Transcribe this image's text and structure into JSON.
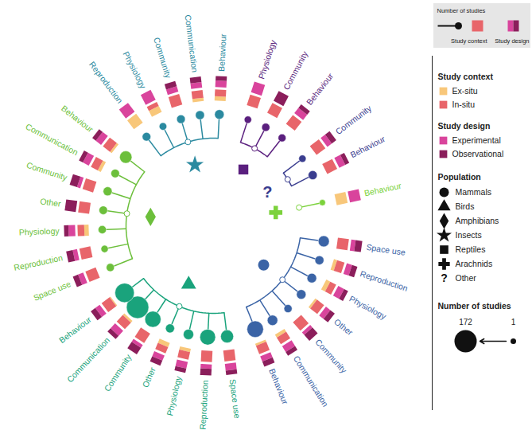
{
  "chart_data": {
    "type": "radial_dendrogram",
    "key": {
      "studies": "Number of studies",
      "context": "Study context",
      "design": "Study design"
    },
    "context_legend": {
      "title": "Study context",
      "items": [
        {
          "name": "Ex-situ",
          "color": "#f8c77a"
        },
        {
          "name": "In-situ",
          "color": "#e8656a"
        }
      ]
    },
    "design_legend": {
      "title": "Study design",
      "items": [
        {
          "name": "Experimental",
          "color": "#d9449c"
        },
        {
          "name": "Observational",
          "color": "#8b1e5b"
        }
      ]
    },
    "population_legend": {
      "title": "Population",
      "items": [
        "Mammals",
        "Birds",
        "Amphibians",
        "Insects",
        "Reptiles",
        "Arachnids",
        "Other"
      ],
      "other_icon": "?"
    },
    "size_legend": {
      "title": "Number of studies",
      "values": [
        172,
        1
      ]
    },
    "groups": [
      {
        "name": "Mammals",
        "color": "#3b64a6",
        "leaves": [
          {
            "label": "Space use",
            "studies": 25,
            "ex_situ": 0,
            "in_situ": 100,
            "experimental": 40,
            "observational": 60
          },
          {
            "label": "Reproduction",
            "studies": 12,
            "ex_situ": 30,
            "in_situ": 70,
            "experimental": 50,
            "observational": 50
          },
          {
            "label": "Physiology",
            "studies": 15,
            "ex_situ": 40,
            "in_situ": 60,
            "experimental": 60,
            "observational": 40
          },
          {
            "label": "Other",
            "studies": 15,
            "ex_situ": 20,
            "in_situ": 80,
            "experimental": 50,
            "observational": 50
          },
          {
            "label": "Community",
            "studies": 8,
            "ex_situ": 0,
            "in_situ": 100,
            "experimental": 30,
            "observational": 70
          },
          {
            "label": "Communication",
            "studies": 20,
            "ex_situ": 30,
            "in_situ": 70,
            "experimental": 60,
            "observational": 40
          },
          {
            "label": "Behaviour",
            "studies": 80,
            "ex_situ": 20,
            "in_situ": 80,
            "experimental": 50,
            "observational": 50
          }
        ]
      },
      {
        "name": "Birds",
        "color": "#1aa37c",
        "leaves": [
          {
            "label": "Space use",
            "studies": 40,
            "ex_situ": 0,
            "in_situ": 100,
            "experimental": 60,
            "observational": 40
          },
          {
            "label": "Reproduction",
            "studies": 70,
            "ex_situ": 0,
            "in_situ": 100,
            "experimental": 40,
            "observational": 60
          },
          {
            "label": "Physiology",
            "studies": 20,
            "ex_situ": 30,
            "in_situ": 70,
            "experimental": 60,
            "observational": 40
          },
          {
            "label": "Other",
            "studies": 12,
            "ex_situ": 40,
            "in_situ": 60,
            "experimental": 50,
            "observational": 50
          },
          {
            "label": "Community",
            "studies": 75,
            "ex_situ": 0,
            "in_situ": 100,
            "experimental": 30,
            "observational": 70
          },
          {
            "label": "Communication",
            "studies": 172,
            "ex_situ": 20,
            "in_situ": 80,
            "experimental": 60,
            "observational": 40
          },
          {
            "label": "Behaviour",
            "studies": 120,
            "ex_situ": 10,
            "in_situ": 90,
            "experimental": 50,
            "observational": 50
          }
        ]
      },
      {
        "name": "Amphibians",
        "color": "#6cbf3b",
        "leaves": [
          {
            "label": "Space use",
            "studies": 8,
            "ex_situ": 0,
            "in_situ": 100,
            "experimental": 50,
            "observational": 50
          },
          {
            "label": "Reproduction",
            "studies": 5,
            "ex_situ": 0,
            "in_situ": 100,
            "experimental": 40,
            "observational": 60
          },
          {
            "label": "Physiology",
            "studies": 8,
            "ex_situ": 40,
            "in_situ": 60,
            "experimental": 60,
            "observational": 40
          },
          {
            "label": "Other",
            "studies": 10,
            "ex_situ": 0,
            "in_situ": 100,
            "experimental": 0,
            "observational": 100
          },
          {
            "label": "Community",
            "studies": 12,
            "ex_situ": 0,
            "in_situ": 100,
            "experimental": 30,
            "observational": 70
          },
          {
            "label": "Communication",
            "studies": 10,
            "ex_situ": 30,
            "in_situ": 70,
            "experimental": 60,
            "observational": 40
          },
          {
            "label": "Behaviour",
            "studies": 35,
            "ex_situ": 20,
            "in_situ": 80,
            "experimental": 60,
            "observational": 40
          }
        ]
      },
      {
        "name": "Insects",
        "color": "#2b8aa0",
        "leaves": [
          {
            "label": "Reproduction",
            "studies": 10,
            "ex_situ": 100,
            "in_situ": 0,
            "experimental": 100,
            "observational": 0
          },
          {
            "label": "Physiology",
            "studies": 6,
            "ex_situ": 60,
            "in_situ": 40,
            "experimental": 100,
            "observational": 0
          },
          {
            "label": "Community",
            "studies": 10,
            "ex_situ": 0,
            "in_situ": 100,
            "experimental": 50,
            "observational": 50
          },
          {
            "label": "Communication",
            "studies": 12,
            "ex_situ": 30,
            "in_situ": 70,
            "experimental": 50,
            "observational": 50
          },
          {
            "label": "Behaviour",
            "studies": 15,
            "ex_situ": 40,
            "in_situ": 60,
            "experimental": 60,
            "observational": 40
          }
        ]
      },
      {
        "name": "Reptiles",
        "color": "#5a1f7e",
        "leaves": [
          {
            "label": "Physiology",
            "studies": 5,
            "ex_situ": 0,
            "in_situ": 100,
            "experimental": 100,
            "observational": 0
          },
          {
            "label": "Community",
            "studies": 8,
            "ex_situ": 0,
            "in_situ": 100,
            "experimental": 0,
            "observational": 100
          },
          {
            "label": "Behaviour",
            "studies": 7,
            "ex_situ": 0,
            "in_situ": 100,
            "experimental": 60,
            "observational": 40
          }
        ]
      },
      {
        "name": "Other",
        "color": "#3a3d8f",
        "leaves": [
          {
            "label": "Community",
            "studies": 5,
            "ex_situ": 0,
            "in_situ": 100,
            "experimental": 50,
            "observational": 50
          },
          {
            "label": "Behaviour",
            "studies": 12,
            "ex_situ": 0,
            "in_situ": 100,
            "experimental": 60,
            "observational": 40
          }
        ]
      },
      {
        "name": "Arachnids",
        "color": "#7cd23c",
        "leaves": [
          {
            "label": "Behaviour",
            "studies": 2,
            "ex_situ": 100,
            "in_situ": 0,
            "experimental": 100,
            "observational": 0
          }
        ]
      }
    ]
  }
}
